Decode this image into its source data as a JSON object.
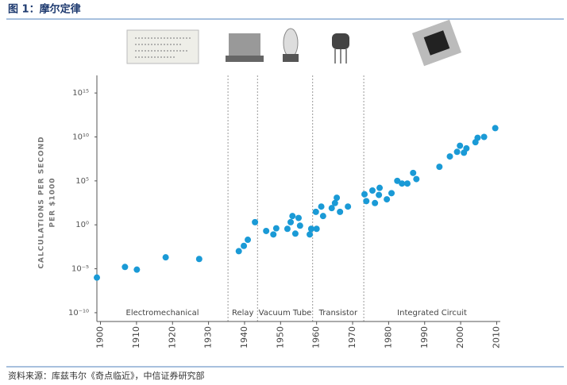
{
  "header": {
    "title": "图 1：摩尔定律"
  },
  "source": "资料来源：库兹韦尔《奇点临近》，中信证券研究部",
  "chart_data": {
    "type": "scatter",
    "ylabel": [
      "CALCULATIONS PER SECOND",
      "PER $1000"
    ],
    "log_y": true,
    "color": "#1a9ad6",
    "xlim": [
      1899,
      2011
    ],
    "ylim": [
      1e-11,
      1e+17
    ],
    "xticks": [
      1900,
      1910,
      1920,
      1930,
      1940,
      1950,
      1960,
      1970,
      1980,
      1990,
      2000,
      2010
    ],
    "yticks": [
      {
        "value": 1e-10,
        "label": "10⁻¹⁰"
      },
      {
        "value": 1e-05,
        "label": "10⁻⁵"
      },
      {
        "value": 1,
        "label": "10⁰"
      },
      {
        "value": 100000.0,
        "label": "10⁵"
      },
      {
        "value": 10000000000.0,
        "label": "10¹⁰"
      },
      {
        "value": 1000000000000000.0,
        "label": "10¹⁵"
      }
    ],
    "eras": [
      "Electromechanical",
      "Relay",
      "Vacuum Tube",
      "Transistor",
      "Integrated Circuit"
    ],
    "era_boundaries": [
      1935.4,
      1943.6,
      1958.9,
      1973.1
    ],
    "x": [
      1899,
      1906.8,
      1910.1,
      1918.1,
      1927.4,
      1938.4,
      1939.8,
      1940.9,
      1942.9,
      1946,
      1948,
      1948.8,
      1951.9,
      1952.8,
      1953.3,
      1954.1,
      1955,
      1955.4,
      1958.1,
      1958.5,
      1960,
      1959.8,
      1961.3,
      1961.8,
      1964.2,
      1965.1,
      1965.6,
      1966.5,
      1968.7,
      1973.3,
      1973.8,
      1975.5,
      1976.2,
      1977.3,
      1977.5,
      1979.5,
      1980.8,
      1982.4,
      1983.7,
      1985.2,
      1986.8,
      1987.7,
      1994.1,
      1997,
      1999,
      1999.8,
      2000.9,
      2001.6,
      2004.1,
      2004.7,
      2006.5,
      2009.6
    ],
    "values": [
      1e-06,
      1.6e-05,
      8e-06,
      0.0002,
      0.00013,
      0.001,
      0.004,
      0.02,
      2,
      0.2,
      0.08,
      0.4,
      0.35,
      2,
      10,
      0.1,
      6,
      0.8,
      0.08,
      0.35,
      0.35,
      30,
      120,
      10,
      80,
      300,
      1200,
      30,
      120,
      3000,
      500,
      8000,
      300,
      2500,
      16000,
      800,
      4000,
      100000.0,
      50000.0,
      50000.0,
      800000.0,
      160000.0,
      4000000.0,
      60000000.0,
      200000000.0,
      1000000000.0,
      160000000.0,
      500000000.0,
      2500000000.0,
      8000000000.0,
      10000000000.0,
      100000000000.0
    ]
  }
}
